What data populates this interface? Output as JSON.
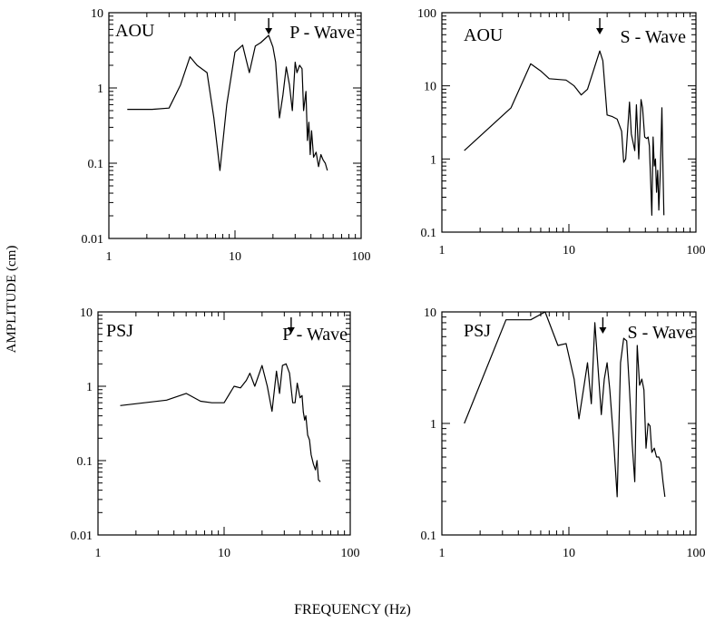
{
  "figure": {
    "ylabel": "AMPLITUDE (cm)",
    "xlabel": "FREQUENCY (Hz)"
  },
  "chart_data": [
    {
      "type": "line",
      "station": "AOU",
      "wave_label": "P - Wave",
      "arrow_x": 18.5,
      "xscale": "log",
      "yscale": "log",
      "xlim": [
        1,
        100
      ],
      "ylim": [
        0.01,
        10
      ],
      "x_ticks": [
        "1",
        "10",
        "100"
      ],
      "y_ticks": [
        "0.01",
        "0.1",
        "1",
        "10"
      ],
      "x": [
        1.4,
        2.2,
        3.0,
        3.7,
        4.4,
        5.0,
        6.0,
        6.8,
        7.6,
        8.6,
        10.0,
        11.5,
        13.0,
        14.5,
        16.0,
        18.5,
        20.0,
        21.0,
        22.5,
        24.0,
        25.5,
        27.0,
        28.5,
        30.0,
        31.0,
        32.5,
        34.0,
        35.0,
        36.5,
        37.5,
        38.5,
        39.5,
        40.5,
        42.0,
        44.0,
        46.0,
        48.0,
        50.0,
        52.0,
        54.0
      ],
      "y": [
        0.52,
        0.52,
        0.54,
        1.1,
        2.6,
        2.0,
        1.6,
        0.4,
        0.08,
        0.6,
        3.0,
        3.7,
        1.6,
        3.6,
        4.0,
        5.0,
        3.5,
        2.2,
        0.4,
        0.8,
        1.9,
        1.1,
        0.5,
        2.2,
        1.6,
        2.0,
        1.8,
        0.5,
        0.9,
        0.2,
        0.35,
        0.13,
        0.27,
        0.12,
        0.14,
        0.09,
        0.13,
        0.11,
        0.1,
        0.08
      ]
    },
    {
      "type": "line",
      "station": "AOU",
      "wave_label": "S - Wave",
      "arrow_x": 17.5,
      "xscale": "log",
      "yscale": "log",
      "xlim": [
        1,
        100
      ],
      "ylim": [
        0.1,
        100
      ],
      "x_ticks": [
        "1",
        "10",
        "100"
      ],
      "y_ticks": [
        "0.1",
        "1",
        "10",
        "100"
      ],
      "x": [
        1.5,
        3.5,
        5.0,
        6.0,
        7.0,
        9.5,
        11.0,
        12.5,
        14.0,
        17.5,
        18.5,
        20.0,
        22.0,
        24.0,
        26.0,
        27.0,
        28.0,
        30.0,
        31.0,
        33.0,
        34.0,
        35.5,
        37.0,
        38.0,
        39.5,
        41.0,
        42.0,
        43.0,
        44.0,
        45.0,
        46.0,
        47.0,
        48.0,
        49.0,
        50.0,
        51.0,
        52.5,
        54.0,
        55.0,
        56.0
      ],
      "y": [
        1.3,
        5.0,
        20.0,
        16.0,
        12.5,
        12.0,
        10.0,
        7.5,
        9.0,
        30.0,
        22.0,
        4.0,
        3.8,
        3.5,
        2.4,
        0.9,
        1.0,
        6.0,
        2.2,
        1.3,
        5.5,
        1.0,
        6.5,
        5.0,
        2.0,
        1.9,
        2.0,
        1.5,
        0.5,
        0.17,
        2.0,
        0.8,
        1.0,
        0.35,
        0.7,
        0.2,
        0.7,
        5.0,
        0.7,
        0.17
      ]
    },
    {
      "type": "line",
      "station": "PSJ",
      "wave_label": "P - Wave",
      "arrow_x": 34.0,
      "xscale": "log",
      "yscale": "log",
      "xlim": [
        1,
        100
      ],
      "ylim": [
        0.01,
        10
      ],
      "x_ticks": [
        "1",
        "10",
        "100"
      ],
      "y_ticks": [
        "0.01",
        "0.1",
        "1",
        "10"
      ],
      "x": [
        1.5,
        3.5,
        5.0,
        6.5,
        8.0,
        10.0,
        12.0,
        13.5,
        15.0,
        16.0,
        17.5,
        20.0,
        22.0,
        24.0,
        26.0,
        27.5,
        29.0,
        31.0,
        33.0,
        35.0,
        36.5,
        38.0,
        40.0,
        41.5,
        42.5,
        43.5,
        44.5,
        46.0,
        47.5,
        49.0,
        51.0,
        53.0,
        54.5,
        56.0,
        58.0
      ],
      "y": [
        0.55,
        0.65,
        0.8,
        0.63,
        0.6,
        0.6,
        1.0,
        0.95,
        1.2,
        1.5,
        1.0,
        1.9,
        1.0,
        0.46,
        1.6,
        0.8,
        1.9,
        2.0,
        1.5,
        0.6,
        0.6,
        1.1,
        0.7,
        0.75,
        0.45,
        0.35,
        0.4,
        0.22,
        0.19,
        0.12,
        0.09,
        0.075,
        0.1,
        0.055,
        0.052
      ]
    },
    {
      "type": "line",
      "station": "PSJ",
      "wave_label": "S - Wave",
      "arrow_x": 18.5,
      "xscale": "log",
      "yscale": "log",
      "xlim": [
        1,
        100
      ],
      "ylim": [
        0.1,
        10
      ],
      "x_ticks": [
        "1",
        "10",
        "100"
      ],
      "y_ticks": [
        "0.1",
        "1",
        "10"
      ],
      "x": [
        1.5,
        3.2,
        5.0,
        6.5,
        8.2,
        9.5,
        11.0,
        12.0,
        13.0,
        14.0,
        15.0,
        16.0,
        17.0,
        18.0,
        19.0,
        20.0,
        21.0,
        22.5,
        24.0,
        25.5,
        27.0,
        28.5,
        30.0,
        31.5,
        33.0,
        34.5,
        36.0,
        37.5,
        39.0,
        40.5,
        42.0,
        43.5,
        45.0,
        47.0,
        49.0,
        51.0,
        53.0,
        55.0,
        57.0
      ],
      "y": [
        1.0,
        8.5,
        8.5,
        10.0,
        5.0,
        5.2,
        2.5,
        1.1,
        2.0,
        3.5,
        1.5,
        8.0,
        3.0,
        1.2,
        2.5,
        3.5,
        2.0,
        0.7,
        0.22,
        3.5,
        5.8,
        5.5,
        2.0,
        0.65,
        0.3,
        5.0,
        2.2,
        2.5,
        2.0,
        0.6,
        1.0,
        0.95,
        0.55,
        0.6,
        0.5,
        0.5,
        0.45,
        0.3,
        0.22
      ]
    }
  ]
}
